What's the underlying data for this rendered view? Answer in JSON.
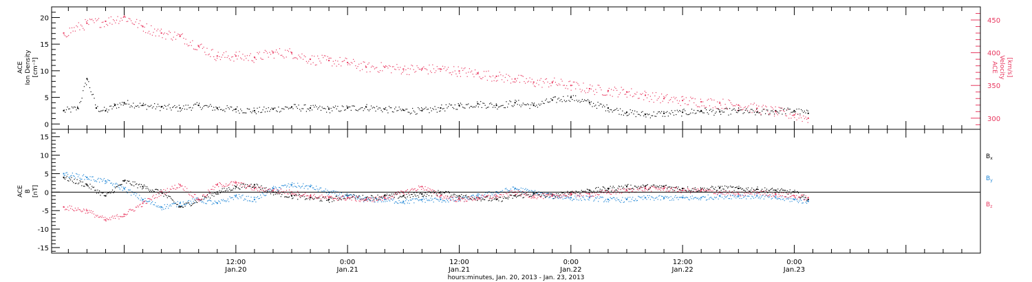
{
  "chart_data": [
    {
      "type": "scatter",
      "panel": "plasma",
      "ylabel_left": [
        "ACE",
        "Ion Density",
        "[cm⁻³]"
      ],
      "ylabel_right": [
        "ACE",
        "Velocity",
        "[km/s]"
      ],
      "y_left_range": [
        -1,
        22
      ],
      "y_left_ticks": [
        "0",
        "5",
        "10",
        "15",
        "20"
      ],
      "y_right_range": [
        283,
        470
      ],
      "y_right_ticks": [
        "300",
        "350",
        "400",
        "450"
      ],
      "colors": {
        "density": "#000000",
        "velocity": "#e8365e"
      },
      "series": [
        {
          "name": "",
          "axis": "left",
          "color": "#000000",
          "x_hours": [
            -6.5,
            -5,
            -4,
            -3,
            -2,
            -1,
            0,
            2,
            4,
            6,
            8,
            10,
            12,
            14,
            16,
            18,
            20,
            22,
            24,
            26,
            28,
            30,
            32,
            34,
            36,
            38,
            40,
            42,
            44,
            46,
            48,
            50,
            52,
            54,
            56,
            58,
            60,
            62,
            64,
            66,
            68,
            70,
            72,
            73.5
          ],
          "y": [
            2.5,
            3.0,
            8.5,
            3.0,
            2.5,
            3.5,
            4.0,
            3.5,
            3.2,
            3.0,
            3.5,
            3.0,
            2.8,
            2.5,
            2.8,
            3.2,
            3.0,
            2.8,
            3.0,
            3.2,
            2.8,
            2.6,
            2.5,
            3.0,
            3.5,
            3.8,
            3.5,
            4.0,
            3.5,
            4.5,
            5.0,
            4.0,
            3.0,
            2.2,
            1.8,
            2.0,
            2.2,
            2.5,
            2.3,
            2.5,
            2.2,
            2.5,
            2.5,
            2.0
          ]
        },
        {
          "name": "",
          "axis": "right",
          "color": "#e8365e",
          "x_hours": [
            -6.5,
            -4,
            -2,
            0,
            2,
            4,
            6,
            8,
            10,
            12,
            14,
            16,
            18,
            20,
            22,
            24,
            26,
            28,
            30,
            32,
            34,
            36,
            38,
            40,
            42,
            44,
            46,
            48,
            50,
            52,
            54,
            56,
            58,
            60,
            62,
            64,
            66,
            68,
            70,
            72,
            73.5
          ],
          "y": [
            430,
            445,
            448,
            455,
            440,
            430,
            425,
            410,
            395,
            395,
            393,
            400,
            400,
            390,
            388,
            385,
            378,
            378,
            375,
            375,
            375,
            372,
            368,
            364,
            360,
            355,
            355,
            350,
            345,
            342,
            340,
            335,
            330,
            327,
            325,
            323,
            320,
            315,
            310,
            305,
            300
          ]
        }
      ]
    },
    {
      "type": "scatter",
      "panel": "magnetic-field",
      "ylabel_left": [
        "ACE",
        "B",
        "[nT]"
      ],
      "y_range": [
        -16.5,
        17
      ],
      "y_ticks": [
        "-15",
        "-10",
        "-5",
        "0",
        "5",
        "10",
        "15"
      ],
      "legend_position": "right",
      "legend": [
        "Bx",
        "By",
        "Bz"
      ],
      "colors": {
        "Bx": "#000000",
        "By": "#1f86d6",
        "Bz": "#e8365e"
      },
      "series": [
        {
          "name": "Bx",
          "color": "#000000",
          "x_hours": [
            -6.5,
            -4,
            -2,
            0,
            2,
            4,
            6,
            8,
            10,
            12,
            14,
            16,
            18,
            20,
            22,
            24,
            26,
            28,
            30,
            32,
            34,
            36,
            38,
            40,
            42,
            44,
            46,
            48,
            50,
            52,
            54,
            56,
            58,
            60,
            62,
            64,
            66,
            68,
            70,
            72,
            73.5
          ],
          "y": [
            4.0,
            2.0,
            -1.0,
            3.0,
            1.5,
            0.0,
            -4.0,
            -2.0,
            0.0,
            1.5,
            2.0,
            0.0,
            -1.0,
            -1.5,
            -2.0,
            -1.0,
            -1.5,
            -1.0,
            -1.0,
            -0.5,
            0.0,
            -1.0,
            -1.5,
            -2.0,
            -1.0,
            -0.5,
            -1.0,
            0.0,
            0.5,
            1.0,
            1.5,
            1.5,
            1.5,
            1.0,
            0.8,
            1.2,
            1.0,
            0.8,
            0.5,
            0.0,
            -2.0
          ]
        },
        {
          "name": "By",
          "color": "#1f86d6",
          "x_hours": [
            -6.5,
            -4,
            -2,
            0,
            2,
            4,
            6,
            8,
            10,
            12,
            14,
            16,
            18,
            20,
            22,
            24,
            26,
            28,
            30,
            32,
            34,
            36,
            38,
            40,
            42,
            44,
            46,
            48,
            50,
            52,
            54,
            56,
            58,
            60,
            62,
            64,
            66,
            68,
            70,
            72,
            73.5
          ],
          "y": [
            5.0,
            4.0,
            3.0,
            1.0,
            -2.0,
            -4.0,
            -3.0,
            -2.0,
            -3.0,
            -1.0,
            -2.0,
            1.0,
            2.0,
            1.5,
            0.0,
            -1.0,
            -2.0,
            -2.0,
            -2.5,
            -2.0,
            -2.0,
            -2.0,
            -1.0,
            0.0,
            1.0,
            0.0,
            -1.0,
            -1.5,
            -1.5,
            -2.0,
            -2.0,
            -1.5,
            -1.5,
            -1.5,
            -1.5,
            -1.0,
            -1.0,
            -1.0,
            -1.5,
            -2.0,
            -2.5
          ]
        },
        {
          "name": "Bz",
          "color": "#e8365e",
          "x_hours": [
            -6.5,
            -4,
            -2,
            0,
            2,
            4,
            6,
            8,
            10,
            12,
            14,
            16,
            18,
            20,
            22,
            24,
            26,
            28,
            30,
            32,
            34,
            36,
            38,
            40,
            42,
            44,
            46,
            48,
            50,
            52,
            54,
            56,
            58,
            60,
            62,
            64,
            66,
            68,
            70,
            72,
            73.5
          ],
          "y": [
            -4.0,
            -5.0,
            -7.5,
            -6.0,
            -3.0,
            0.0,
            2.0,
            -2.0,
            2.0,
            2.5,
            1.0,
            0.5,
            0.0,
            -1.0,
            -1.5,
            -1.5,
            -2.0,
            -1.5,
            0.0,
            1.5,
            -1.0,
            -2.0,
            -1.5,
            -1.0,
            0.0,
            -1.0,
            -1.0,
            -0.5,
            -0.5,
            0.0,
            0.5,
            1.0,
            1.0,
            0.5,
            0.5,
            0.0,
            -0.5,
            0.0,
            -0.5,
            -1.0,
            -1.5
          ]
        }
      ]
    }
  ],
  "legend_labels": [
    {
      "base": "B",
      "sub": "x"
    },
    {
      "base": "B",
      "sub": "y"
    },
    {
      "base": "B",
      "sub": "z"
    }
  ],
  "x_axis": {
    "range_hours": [
      -7.8,
      92
    ],
    "tick_labels": [
      {
        "time": "12:00",
        "date": "Jan.20",
        "hours": 12
      },
      {
        "time": "0:00",
        "date": "Jan.21",
        "hours": 24
      },
      {
        "time": "12:00",
        "date": "Jan.21",
        "hours": 36
      },
      {
        "time": "0:00",
        "date": "Jan.22",
        "hours": 48
      },
      {
        "time": "12:00",
        "date": "Jan.22",
        "hours": 60
      },
      {
        "time": "0:00",
        "date": "Jan.23",
        "hours": 72
      }
    ],
    "title": "hours:minutes, Jan. 20, 2013 - Jan. 23, 2013"
  }
}
